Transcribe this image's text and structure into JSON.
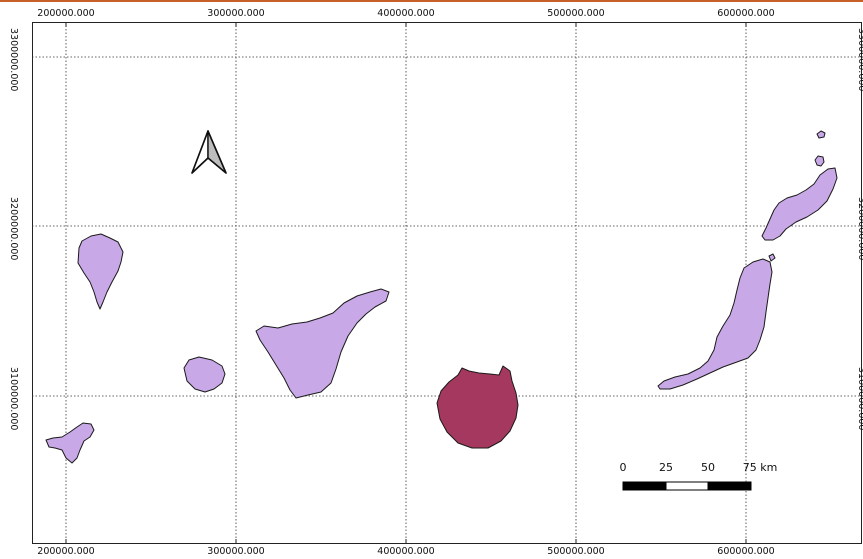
{
  "map": {
    "x_ticks": [
      "200000.000",
      "300000.000",
      "400000.000",
      "500000.000",
      "600000.000"
    ],
    "y_ticks": [
      "3300000.000",
      "3200000.000",
      "3100000.000"
    ],
    "colors": {
      "island_fill": "#c8a8e6",
      "highlight_fill": "#a5385e",
      "outline": "#1a1a1a",
      "grid": "#333333",
      "frame_accent": "#c8602a"
    },
    "highlighted_island": "Gran Canaria",
    "scale_bar": {
      "labels": [
        "0",
        "25",
        "50",
        "75 km"
      ]
    },
    "north_arrow": "north-arrow-icon"
  }
}
